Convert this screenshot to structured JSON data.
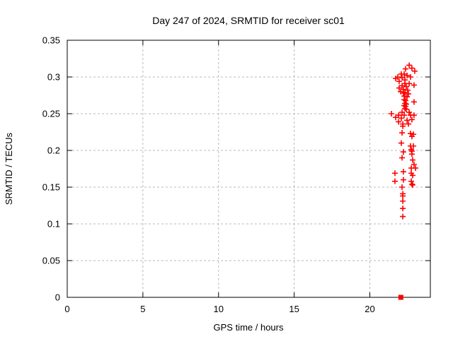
{
  "page": {
    "background_color": "#ffffff",
    "text_color": "#000000"
  },
  "chart_data": {
    "type": "scatter",
    "title": "Day 247 of 2024, SRMTID for receiver sc01",
    "xlabel": "GPS time / hours",
    "ylabel": "SRMTID / TECUs",
    "xlim": [
      0,
      24
    ],
    "ylim": [
      0,
      0.35
    ],
    "xtick_values": [
      0,
      5,
      10,
      15,
      20
    ],
    "xtick_labels": [
      "0",
      "5",
      "10",
      "15",
      "20"
    ],
    "ytick_values": [
      0,
      0.05,
      0.1,
      0.15,
      0.2,
      0.25,
      0.3,
      0.35
    ],
    "ytick_labels": [
      "0",
      "0.05",
      "0.1",
      "0.15",
      "0.2",
      "0.25",
      "0.3",
      "0.35"
    ],
    "grid": true,
    "grid_style": "dashed",
    "grid_color": "#b8b8b8",
    "border_color": "#000000",
    "legend": "none",
    "marker": "plus",
    "marker_color": "#ff0000",
    "series": [
      {
        "name": "SRMTID",
        "points": [
          [
            22.6,
            0.316
          ],
          [
            22.78,
            0.312
          ],
          [
            22.36,
            0.311
          ],
          [
            22.97,
            0.308
          ],
          [
            22.08,
            0.304
          ],
          [
            22.27,
            0.304
          ],
          [
            22.46,
            0.302
          ],
          [
            21.85,
            0.3
          ],
          [
            22.69,
            0.3
          ],
          [
            22.13,
            0.299
          ],
          [
            21.71,
            0.298
          ],
          [
            22.32,
            0.296
          ],
          [
            21.94,
            0.294
          ],
          [
            22.32,
            0.291
          ],
          [
            22.6,
            0.291
          ],
          [
            22.92,
            0.289
          ],
          [
            22.13,
            0.288
          ],
          [
            22.41,
            0.287
          ],
          [
            21.94,
            0.285
          ],
          [
            22.22,
            0.283
          ],
          [
            22.5,
            0.282
          ],
          [
            22.04,
            0.28
          ],
          [
            22.32,
            0.279
          ],
          [
            22.22,
            0.278
          ],
          [
            22.55,
            0.277
          ],
          [
            22.27,
            0.274
          ],
          [
            22.46,
            0.273
          ],
          [
            22.27,
            0.269
          ],
          [
            22.36,
            0.268
          ],
          [
            22.92,
            0.266
          ],
          [
            22.32,
            0.264
          ],
          [
            22.41,
            0.263
          ],
          [
            22.27,
            0.261
          ],
          [
            22.36,
            0.26
          ],
          [
            22.32,
            0.257
          ],
          [
            22.41,
            0.256
          ],
          [
            22.13,
            0.252
          ],
          [
            22.6,
            0.252
          ],
          [
            21.43,
            0.25
          ],
          [
            21.9,
            0.248
          ],
          [
            22.27,
            0.248
          ],
          [
            22.69,
            0.248
          ],
          [
            22.92,
            0.248
          ],
          [
            21.71,
            0.245
          ],
          [
            22.08,
            0.244
          ],
          [
            22.78,
            0.242
          ],
          [
            22.46,
            0.241
          ],
          [
            21.9,
            0.239
          ],
          [
            22.18,
            0.236
          ],
          [
            22.55,
            0.236
          ],
          [
            22.18,
            0.233
          ],
          [
            22.13,
            0.224
          ],
          [
            22.69,
            0.223
          ],
          [
            22.88,
            0.222
          ],
          [
            22.78,
            0.219
          ],
          [
            22.08,
            0.21
          ],
          [
            22.69,
            0.206
          ],
          [
            22.88,
            0.206
          ],
          [
            22.74,
            0.201
          ],
          [
            22.78,
            0.199
          ],
          [
            22.22,
            0.198
          ],
          [
            22.78,
            0.195
          ],
          [
            22.13,
            0.19
          ],
          [
            22.83,
            0.187
          ],
          [
            22.92,
            0.181
          ],
          [
            22.74,
            0.176
          ],
          [
            23.02,
            0.176
          ],
          [
            22.22,
            0.171
          ],
          [
            21.66,
            0.169
          ],
          [
            22.74,
            0.169
          ],
          [
            22.83,
            0.166
          ],
          [
            22.22,
            0.16
          ],
          [
            21.66,
            0.158
          ],
          [
            22.74,
            0.158
          ],
          [
            22.78,
            0.154
          ],
          [
            22.83,
            0.153
          ],
          [
            22.13,
            0.15
          ],
          [
            22.18,
            0.141
          ],
          [
            22.18,
            0.138
          ],
          [
            22.18,
            0.131
          ],
          [
            22.18,
            0.121
          ],
          [
            22.18,
            0.11
          ]
        ]
      }
    ],
    "zero_cluster": {
      "x": 22.05,
      "y": 0,
      "marker": "filled-square"
    }
  }
}
